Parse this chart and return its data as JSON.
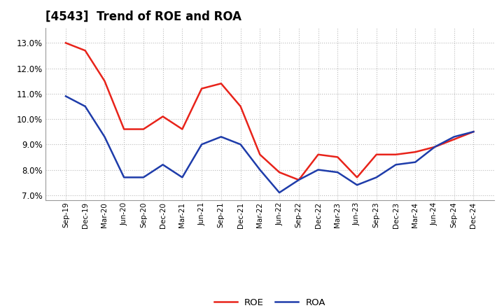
{
  "title": "[4543]  Trend of ROE and ROA",
  "x_labels": [
    "Sep-19",
    "Dec-19",
    "Mar-20",
    "Jun-20",
    "Sep-20",
    "Dec-20",
    "Mar-21",
    "Jun-21",
    "Sep-21",
    "Dec-21",
    "Mar-22",
    "Jun-22",
    "Sep-22",
    "Dec-22",
    "Mar-23",
    "Jun-23",
    "Sep-23",
    "Dec-23",
    "Mar-24",
    "Jun-24",
    "Sep-24",
    "Dec-24"
  ],
  "roe": [
    13.0,
    12.7,
    11.5,
    9.6,
    9.6,
    10.1,
    9.6,
    11.2,
    11.4,
    10.5,
    8.6,
    7.9,
    7.6,
    8.6,
    8.5,
    7.7,
    8.6,
    8.6,
    8.7,
    8.9,
    9.2,
    9.5
  ],
  "roa": [
    10.9,
    10.5,
    9.3,
    7.7,
    7.7,
    8.2,
    7.7,
    9.0,
    9.3,
    9.0,
    8.0,
    7.1,
    7.6,
    8.0,
    7.9,
    7.4,
    7.7,
    8.2,
    8.3,
    8.9,
    9.3,
    9.5
  ],
  "roe_color": "#e8231a",
  "roa_color": "#1e3caa",
  "ylim_min": 6.8,
  "ylim_max": 13.6,
  "yticks": [
    7.0,
    8.0,
    9.0,
    10.0,
    11.0,
    12.0,
    13.0
  ],
  "background_color": "#ffffff",
  "plot_bg_color": "#ffffff",
  "grid_color": "#bbbbbb",
  "legend_roe": "ROE",
  "legend_roa": "ROA",
  "title_fontsize": 12,
  "tick_fontsize": 7.5,
  "ytick_fontsize": 8.5,
  "linewidth": 1.8
}
